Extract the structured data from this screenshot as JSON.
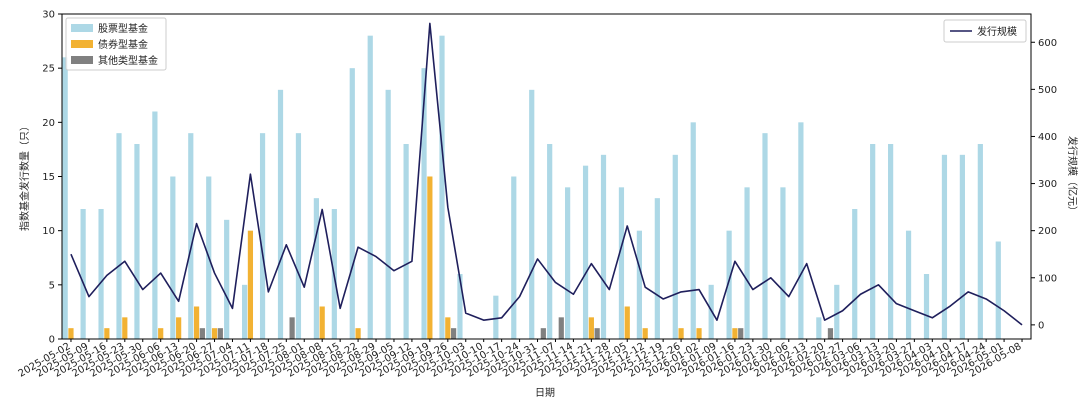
{
  "chart_data": {
    "type": "bar",
    "xlabel": "日期",
    "ylabel_left": "指数基金发行数量（只）",
    "ylabel_right": "发行规模（亿元）",
    "ylim_left": [
      0,
      30
    ],
    "ylim_right": [
      -30,
      660
    ],
    "yticks_left": [
      0,
      5,
      10,
      15,
      20,
      25,
      30
    ],
    "yticks_right": [
      0,
      100,
      200,
      300,
      400,
      500,
      600
    ],
    "categories": [
      "2025-05-02",
      "2025-05-09",
      "2025-05-16",
      "2025-05-23",
      "2025-05-30",
      "2025-06-06",
      "2025-06-13",
      "2025-06-20",
      "2025-06-27",
      "2025-07-04",
      "2025-07-11",
      "2025-07-18",
      "2025-07-25",
      "2025-08-01",
      "2025-08-08",
      "2025-08-15",
      "2025-08-22",
      "2025-08-29",
      "2025-09-05",
      "2025-09-12",
      "2025-09-19",
      "2025-09-26",
      "2025-10-03",
      "2025-10-10",
      "2025-10-17",
      "2025-10-24",
      "2025-10-31",
      "2025-11-07",
      "2025-11-14",
      "2025-11-21",
      "2025-11-28",
      "2025-12-05",
      "2025-12-12",
      "2025-12-19",
      "2025-12-26",
      "2026-01-02",
      "2026-01-09",
      "2026-01-16",
      "2026-01-23",
      "2026-01-30",
      "2026-02-06",
      "2026-02-13",
      "2026-02-20",
      "2026-02-27",
      "2026-03-06",
      "2026-03-13",
      "2026-03-20",
      "2026-03-27",
      "2026-04-03",
      "2026-04-10",
      "2026-04-17",
      "2026-04-24",
      "2026-05-01",
      "2026-05-08"
    ],
    "xtick_labels": [
      "2025-05-02",
      "2025-05-09",
      "2025-05-16",
      "2025-05-23",
      "2025-05-30",
      "2025-06-06",
      "2025-06-13",
      "2025-06-20",
      "2025-06-27",
      "2025-07-04",
      "2025-07-11",
      "2025-07-18",
      "2025-07-25",
      "2025-08-01",
      "2025-08-08",
      "2025-08-15",
      "2025-08-22",
      "2025-08-29",
      "2025-09-05",
      "2025-09-12",
      "2025-09-19",
      "2025-09-26",
      "2025-10-03",
      "2025-10-10",
      "2025-10-17",
      "2025-10-24",
      "2025-10-31",
      "2025-11-07",
      "2025-11-14",
      "2025-11-21",
      "2025-11-28",
      "2025-12-05",
      "2025-12-12",
      "2025-12-19",
      "2025-12-26",
      "2026-01-02",
      "2026-01-09",
      "2026-01-16",
      "2026-01-23",
      "2026-01-30",
      "2026-02-06",
      "2026-02-13",
      "2026-02-20",
      "2026-02-27",
      "2026-03-06",
      "2026-03-13",
      "2026-03-20",
      "2026-03-27",
      "2026-04-03",
      "2026-04-10",
      "2026-04-17",
      "2026-04-24",
      "2026-05-01",
      "2026-05-08"
    ],
    "series": [
      {
        "name": "股票型基金",
        "kind": "bar",
        "color": "#ADD8E6",
        "values": [
          26,
          12,
          12,
          19,
          18,
          21,
          15,
          19,
          15,
          11,
          5,
          19,
          23,
          19,
          13,
          12,
          25,
          28,
          23,
          18,
          25,
          28,
          6,
          0,
          4,
          15,
          23,
          18,
          14,
          16,
          17,
          14,
          10,
          13,
          17,
          20,
          5,
          10,
          14,
          19,
          14,
          20,
          2,
          5,
          12,
          18,
          18,
          10,
          6,
          17,
          17,
          18,
          9,
          0
        ]
      },
      {
        "name": "债券型基金",
        "kind": "bar",
        "color": "#F2B233",
        "values": [
          1,
          0,
          1,
          2,
          0,
          1,
          2,
          3,
          1,
          0,
          10,
          0,
          0,
          0,
          3,
          0,
          1,
          0,
          0,
          0,
          15,
          2,
          0,
          0,
          0,
          0,
          0,
          0,
          0,
          2,
          0,
          3,
          1,
          0,
          1,
          1,
          0,
          1,
          0,
          0,
          0,
          0,
          0,
          0,
          0,
          0,
          0,
          0,
          0,
          0,
          0,
          0,
          0,
          0
        ]
      },
      {
        "name": "其他类型基金",
        "kind": "bar",
        "color": "#808080",
        "values": [
          0,
          0,
          0,
          0,
          0,
          0,
          0,
          1,
          1,
          0,
          0,
          0,
          2,
          0,
          0,
          0,
          0,
          0,
          0,
          0,
          0,
          1,
          0,
          0,
          0,
          0,
          1,
          2,
          0,
          1,
          0,
          0,
          0,
          0,
          0,
          0,
          0,
          1,
          0,
          0,
          0,
          0,
          1,
          0,
          0,
          0,
          0,
          0,
          0,
          0,
          0,
          0,
          0,
          0
        ]
      },
      {
        "name": "发行规模",
        "kind": "line",
        "axis": "right",
        "color": "#1F1F5C",
        "values": [
          150,
          60,
          105,
          135,
          75,
          110,
          50,
          215,
          110,
          35,
          320,
          70,
          170,
          80,
          245,
          35,
          165,
          145,
          115,
          135,
          640,
          250,
          25,
          10,
          15,
          60,
          140,
          90,
          65,
          130,
          75,
          210,
          80,
          55,
          70,
          75,
          10,
          135,
          75,
          100,
          60,
          130,
          10,
          30,
          65,
          85,
          45,
          30,
          15,
          40,
          70,
          55,
          30,
          0
        ]
      }
    ],
    "legend_left": {
      "placement": "top-left",
      "entries": [
        "股票型基金",
        "债券型基金",
        "其他类型基金"
      ]
    },
    "legend_right": {
      "placement": "top-right",
      "entries": [
        "发行规模"
      ]
    },
    "grid": false
  }
}
